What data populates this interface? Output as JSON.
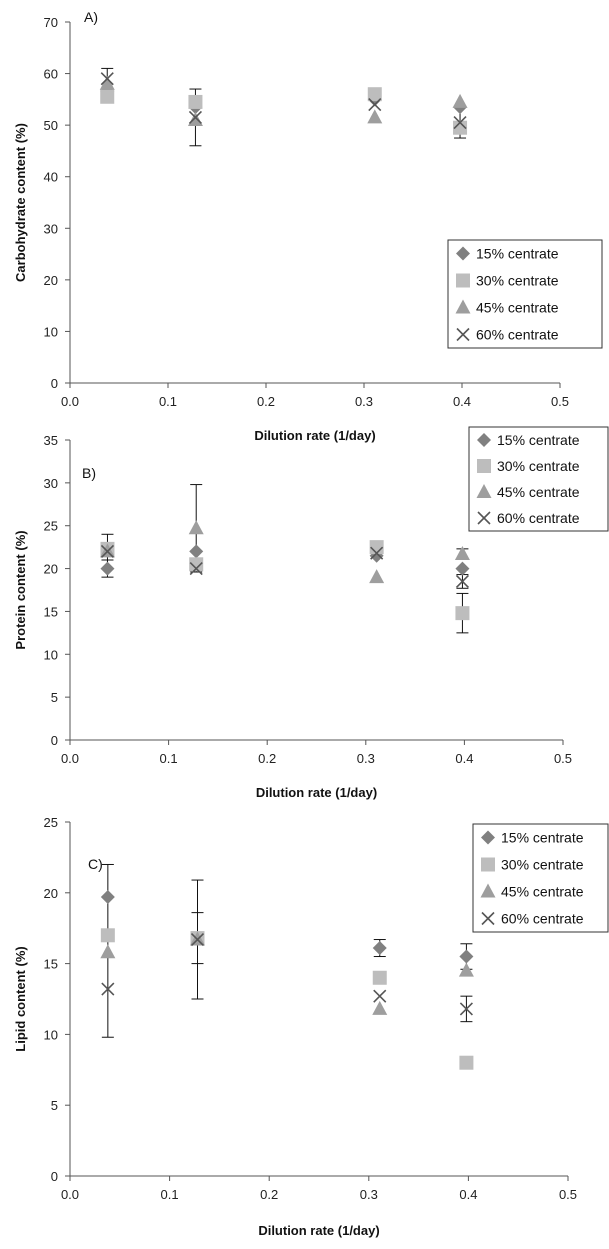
{
  "chart_data": [
    {
      "type": "scatter",
      "panel_label": "A)",
      "xlabel": "Dilution rate (1/day)",
      "ylabel": "Carbohydrate content (%)",
      "xlim": [
        0,
        0.5
      ],
      "ylim": [
        0,
        70
      ],
      "xticks": [
        "0.0",
        "0.1",
        "0.2",
        "0.3",
        "0.4",
        "0.5"
      ],
      "yticks": [
        "0",
        "10",
        "20",
        "30",
        "40",
        "50",
        "60",
        "70"
      ],
      "grid": false,
      "legend_position": "bottom-right",
      "series": [
        {
          "name": "15% centrate",
          "marker": "diamond",
          "color": "#808080",
          "points": [
            {
              "x": 0.038,
              "y": 56.5,
              "err": 0
            },
            {
              "x": 0.128,
              "y": 53.5,
              "err": 0
            },
            {
              "x": 0.311,
              "y": 55.0,
              "err": 0
            },
            {
              "x": 0.398,
              "y": 53.5,
              "err": 0
            }
          ]
        },
        {
          "name": "30% centrate",
          "marker": "square",
          "color": "#bdbdbd",
          "points": [
            {
              "x": 0.038,
              "y": 55.5,
              "err": 0
            },
            {
              "x": 0.128,
              "y": 54.5,
              "err": 0
            },
            {
              "x": 0.311,
              "y": 56.0,
              "err": 0
            },
            {
              "x": 0.398,
              "y": 49.5,
              "err": 0
            }
          ]
        },
        {
          "name": "45% centrate",
          "marker": "triangle",
          "color": "#9e9e9e",
          "points": [
            {
              "x": 0.038,
              "y": 58.0,
              "err": 0
            },
            {
              "x": 0.128,
              "y": 51.0,
              "err": 0
            },
            {
              "x": 0.311,
              "y": 51.5,
              "err": 0
            },
            {
              "x": 0.398,
              "y": 54.5,
              "err": 0
            }
          ]
        },
        {
          "name": "60% centrate",
          "marker": "x",
          "color": "#555555",
          "points": [
            {
              "x": 0.038,
              "y": 59.0,
              "err": 2.0
            },
            {
              "x": 0.128,
              "y": 51.5,
              "err": 5.5
            },
            {
              "x": 0.311,
              "y": 54.0,
              "err": 0
            },
            {
              "x": 0.398,
              "y": 50.5,
              "err": 3.0
            }
          ]
        }
      ]
    },
    {
      "type": "scatter",
      "panel_label": "B)",
      "xlabel": "Dilution rate (1/day)",
      "ylabel": "Protein  content (%)",
      "xlim": [
        0,
        0.5
      ],
      "ylim": [
        0,
        35
      ],
      "xticks": [
        "0.0",
        "0.1",
        "0.2",
        "0.3",
        "0.4",
        "0.5"
      ],
      "yticks": [
        "0",
        "5",
        "10",
        "15",
        "20",
        "25",
        "30",
        "35"
      ],
      "grid": false,
      "legend_position": "top-right",
      "series": [
        {
          "name": "15% centrate",
          "marker": "diamond",
          "color": "#808080",
          "points": [
            {
              "x": 0.038,
              "y": 20.0,
              "err": 1.0
            },
            {
              "x": 0.128,
              "y": 22.0,
              "err": 0
            },
            {
              "x": 0.311,
              "y": 21.5,
              "err": 0
            },
            {
              "x": 0.398,
              "y": 20.0,
              "err": 0
            }
          ]
        },
        {
          "name": "30% centrate",
          "marker": "square",
          "color": "#bdbdbd",
          "points": [
            {
              "x": 0.038,
              "y": 22.3,
              "err": 0
            },
            {
              "x": 0.128,
              "y": 20.5,
              "err": 0
            },
            {
              "x": 0.311,
              "y": 22.5,
              "err": 0
            },
            {
              "x": 0.398,
              "y": 14.8,
              "err": 2.3
            }
          ]
        },
        {
          "name": "45% centrate",
          "marker": "triangle",
          "color": "#9e9e9e",
          "points": [
            {
              "x": 0.038,
              "y": 22.0,
              "err": 2.0
            },
            {
              "x": 0.128,
              "y": 24.7,
              "err": 5.1
            },
            {
              "x": 0.311,
              "y": 19.0,
              "err": 0
            },
            {
              "x": 0.398,
              "y": 21.7,
              "err": 0.6
            }
          ]
        },
        {
          "name": "60% centrate",
          "marker": "x",
          "color": "#555555",
          "points": [
            {
              "x": 0.038,
              "y": 22.0,
              "err": 0
            },
            {
              "x": 0.128,
              "y": 20.0,
              "err": 0
            },
            {
              "x": 0.311,
              "y": 21.8,
              "err": 0
            },
            {
              "x": 0.398,
              "y": 18.5,
              "err": 0.8
            }
          ]
        }
      ]
    },
    {
      "type": "scatter",
      "panel_label": "C)",
      "xlabel": "Dilution rate (1/day)",
      "ylabel": "Lipid content (%)",
      "xlim": [
        0,
        0.5
      ],
      "ylim": [
        0,
        25
      ],
      "xticks": [
        "0.0",
        "0.1",
        "0.2",
        "0.3",
        "0.4",
        "0.5"
      ],
      "yticks": [
        "0",
        "5",
        "10",
        "15",
        "20",
        "25"
      ],
      "grid": false,
      "legend_position": "top-right",
      "series": [
        {
          "name": "15% centrate",
          "marker": "diamond",
          "color": "#808080",
          "points": [
            {
              "x": 0.038,
              "y": 19.7,
              "err": 2.3
            },
            {
              "x": 0.128,
              "y": 16.8,
              "err": 1.8
            },
            {
              "x": 0.311,
              "y": 16.1,
              "err": 0.6
            },
            {
              "x": 0.398,
              "y": 15.5,
              "err": 0.9
            }
          ]
        },
        {
          "name": "30% centrate",
          "marker": "square",
          "color": "#bdbdbd",
          "points": [
            {
              "x": 0.038,
              "y": 17.0,
              "err": 0
            },
            {
              "x": 0.128,
              "y": 16.8,
              "err": 0
            },
            {
              "x": 0.311,
              "y": 14.0,
              "err": 0
            },
            {
              "x": 0.398,
              "y": 8.0,
              "err": 0
            }
          ]
        },
        {
          "name": "45% centrate",
          "marker": "triangle",
          "color": "#9e9e9e",
          "points": [
            {
              "x": 0.038,
              "y": 15.8,
              "err": 0
            },
            {
              "x": 0.128,
              "y": 16.7,
              "err": 0
            },
            {
              "x": 0.311,
              "y": 11.8,
              "err": 0
            },
            {
              "x": 0.398,
              "y": 14.5,
              "err": 0
            }
          ]
        },
        {
          "name": "60% centrate",
          "marker": "x",
          "color": "#555555",
          "points": [
            {
              "x": 0.038,
              "y": 13.2,
              "err": 3.4
            },
            {
              "x": 0.128,
              "y": 16.7,
              "err": 4.2
            },
            {
              "x": 0.311,
              "y": 12.7,
              "err": 0
            },
            {
              "x": 0.398,
              "y": 11.8,
              "err": 0.9
            }
          ]
        }
      ]
    }
  ]
}
